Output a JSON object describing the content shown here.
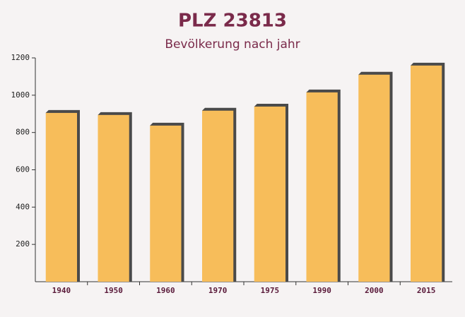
{
  "chart_data": {
    "type": "bar",
    "title": "PLZ 23813",
    "subtitle": "Bevölkerung nach jahr",
    "categories": [
      "1940",
      "1950",
      "1960",
      "1970",
      "1975",
      "1990",
      "2000",
      "2015"
    ],
    "values": [
      905,
      894,
      837,
      917,
      939,
      1015,
      1110,
      1159
    ],
    "color": "#f7bd5a",
    "ylim": [
      0,
      1200
    ],
    "yticks": [
      200,
      400,
      600,
      800,
      1000,
      1200
    ],
    "grid": false
  }
}
